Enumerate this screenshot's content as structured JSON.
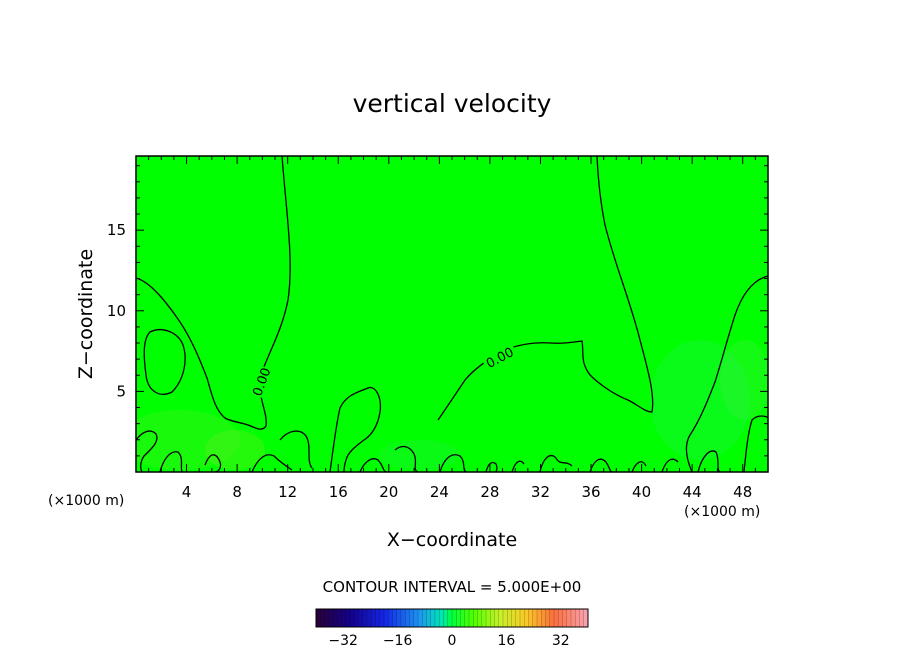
{
  "chart_data": {
    "type": "heatmap",
    "title": "vertical velocity",
    "xlabel": "X−coordinate",
    "ylabel": "Z−coordinate",
    "x_unit_left": "(×1000 m)",
    "x_unit_right": "(×1000 m)",
    "xlim": [
      0,
      50
    ],
    "ylim": [
      0,
      19.6
    ],
    "x_ticks": [
      4,
      8,
      12,
      16,
      20,
      24,
      28,
      32,
      36,
      40,
      44,
      48
    ],
    "x_tick_labels": [
      "4",
      "8",
      "12",
      "16",
      "20",
      "24",
      "28",
      "32",
      "36",
      "40",
      "44",
      "48"
    ],
    "y_ticks": [
      5,
      10,
      15
    ],
    "y_tick_labels": [
      "5",
      "10",
      "15"
    ],
    "contour_labels": [
      "0.00",
      "0.00"
    ],
    "contour_interval_text": "CONTOUR INTERVAL = 5.000E+00",
    "colorbar": {
      "range": [
        -40,
        40
      ],
      "ticks": [
        -32,
        -16,
        0,
        16,
        32
      ],
      "tick_labels": [
        "−32",
        "−16",
        "0",
        "16",
        "32"
      ]
    },
    "field_color": "#00ff00",
    "contour_color": "#000000"
  }
}
